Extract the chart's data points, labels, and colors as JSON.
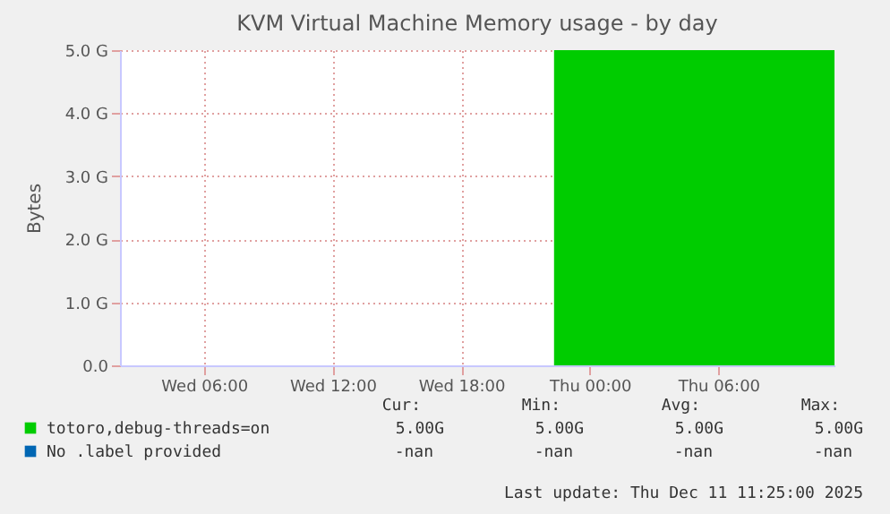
{
  "chart_data": {
    "type": "area",
    "title": "KVM Virtual Machine Memory usage - by day",
    "ylabel": "Bytes",
    "x": [
      "2025-12-10T22:20",
      "2025-12-11T11:25"
    ],
    "series": [
      {
        "name": "totoro,debug-threads=on",
        "color": "#00cc00",
        "values": [
          5,
          5
        ]
      },
      {
        "name": "No .label provided",
        "color": "#0066b3",
        "values": [
          null,
          null
        ]
      }
    ],
    "xlim": [
      "2025-12-10T02:05",
      "2025-12-11T11:25"
    ],
    "xticks": [
      {
        "value": "2025-12-10T06:00",
        "label": "Wed 06:00"
      },
      {
        "value": "2025-12-10T12:00",
        "label": "Wed 12:00"
      },
      {
        "value": "2025-12-10T18:00",
        "label": "Wed 18:00"
      },
      {
        "value": "2025-12-11T00:00",
        "label": "Thu 00:00"
      },
      {
        "value": "2025-12-11T06:00",
        "label": "Thu 06:00"
      }
    ],
    "ylim": [
      0,
      5
    ],
    "yticks": [
      {
        "value": 0,
        "label": "0.0"
      },
      {
        "value": 1,
        "label": "1.0 G"
      },
      {
        "value": 2,
        "label": "2.0 G"
      },
      {
        "value": 3,
        "label": "3.0 G"
      },
      {
        "value": 4,
        "label": "4.0 G"
      },
      {
        "value": 5,
        "label": "5.0 G"
      }
    ],
    "grid": true,
    "legend": "bottom",
    "annotations": [
      "Cur:",
      "Min:",
      "Avg:",
      "Max:",
      "5.00G",
      "5.00G",
      "5.00G",
      "5.00G",
      "-nan",
      "-nan",
      "-nan",
      "-nan",
      "Last update: Thu Dec 11 11:25:00 2025"
    ]
  }
}
